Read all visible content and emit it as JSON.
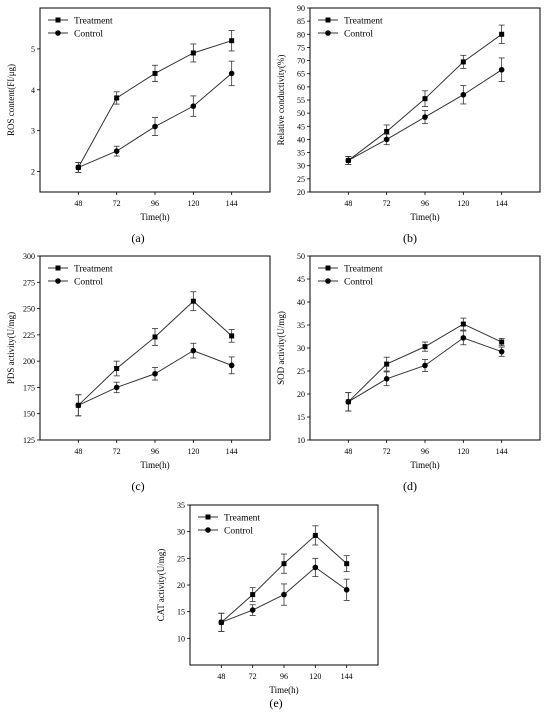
{
  "chart_data": [
    {
      "panel": "(a)",
      "type": "line",
      "xlabel": "Time(h)",
      "ylabel": "ROS content(FI/μg)",
      "categories": [
        48,
        72,
        96,
        120,
        144
      ],
      "ylim": [
        1.5,
        6
      ],
      "yticks": [
        2,
        3,
        4,
        5
      ],
      "legend_position": "top-left",
      "series": [
        {
          "name": "Treatment",
          "marker": "square",
          "values": [
            2.1,
            3.8,
            4.4,
            4.9,
            5.2
          ],
          "errors": [
            0.12,
            0.15,
            0.2,
            0.22,
            0.25
          ]
        },
        {
          "name": "Control",
          "marker": "circle",
          "values": [
            2.1,
            2.5,
            3.1,
            3.6,
            4.4
          ],
          "errors": [
            0.12,
            0.12,
            0.22,
            0.25,
            0.3
          ]
        }
      ]
    },
    {
      "panel": "(b)",
      "type": "line",
      "xlabel": "Time(h)",
      "ylabel": "Relative conductivity(%)",
      "categories": [
        48,
        72,
        96,
        120,
        144
      ],
      "ylim": [
        20,
        90
      ],
      "yticks": [
        20,
        25,
        30,
        35,
        40,
        45,
        50,
        55,
        60,
        65,
        70,
        75,
        80,
        85,
        90
      ],
      "legend_position": "top-left",
      "series": [
        {
          "name": "Treatment",
          "marker": "square",
          "values": [
            32,
            43,
            55.5,
            69.5,
            80
          ],
          "errors": [
            1.5,
            2.5,
            3,
            2.5,
            3.5
          ]
        },
        {
          "name": "Control",
          "marker": "circle",
          "values": [
            32,
            40,
            48.5,
            57,
            66.5
          ],
          "errors": [
            1.5,
            2,
            2.5,
            3.5,
            4.5
          ]
        }
      ]
    },
    {
      "panel": "(c)",
      "type": "line",
      "xlabel": "Time(h)",
      "ylabel": "PDS activity(U/mg)",
      "categories": [
        48,
        72,
        96,
        120,
        144
      ],
      "ylim": [
        125,
        300
      ],
      "yticks": [
        125,
        150,
        175,
        200,
        225,
        250,
        275,
        300
      ],
      "legend_position": "top-left",
      "series": [
        {
          "name": "Treatment",
          "marker": "square",
          "values": [
            158,
            193,
            223,
            257,
            224
          ],
          "errors": [
            10,
            7,
            8,
            9,
            6
          ]
        },
        {
          "name": "Control",
          "marker": "circle",
          "values": [
            158,
            175,
            188,
            210,
            196
          ],
          "errors": [
            10,
            5,
            6,
            7,
            8
          ]
        }
      ]
    },
    {
      "panel": "(d)",
      "type": "line",
      "xlabel": "Time(h)",
      "ylabel": "SOD activity(U/mg)",
      "categories": [
        48,
        72,
        96,
        120,
        144
      ],
      "ylim": [
        10,
        50
      ],
      "yticks": [
        10,
        15,
        20,
        25,
        30,
        35,
        40,
        45,
        50
      ],
      "legend_position": "top-left",
      "series": [
        {
          "name": "Treatment",
          "marker": "square",
          "values": [
            18.3,
            26.5,
            30.3,
            35.2,
            31.3
          ],
          "errors": [
            2,
            1.5,
            1,
            1.3,
            0.8
          ]
        },
        {
          "name": "Control",
          "marker": "circle",
          "values": [
            18.3,
            23.3,
            26.2,
            32.2,
            29.2
          ],
          "errors": [
            2,
            1.5,
            1.3,
            1.5,
            1
          ]
        }
      ]
    },
    {
      "panel": "(e)",
      "type": "line",
      "xlabel": "Time(h)",
      "ylabel": "CAT activity(U/mg)",
      "categories": [
        48,
        72,
        96,
        120,
        144
      ],
      "ylim": [
        5,
        35
      ],
      "yticks": [
        10,
        15,
        20,
        25,
        30,
        35
      ],
      "legend_position": "top-left",
      "series": [
        {
          "name": "Treament",
          "marker": "square",
          "values": [
            13,
            18.2,
            24,
            29.3,
            24
          ],
          "errors": [
            1.7,
            1.3,
            1.8,
            1.8,
            1.5
          ]
        },
        {
          "name": "Control",
          "marker": "circle",
          "values": [
            13,
            15.3,
            18.2,
            23.3,
            19.1
          ],
          "errors": [
            1.7,
            1,
            2,
            1.7,
            2
          ]
        }
      ]
    }
  ]
}
